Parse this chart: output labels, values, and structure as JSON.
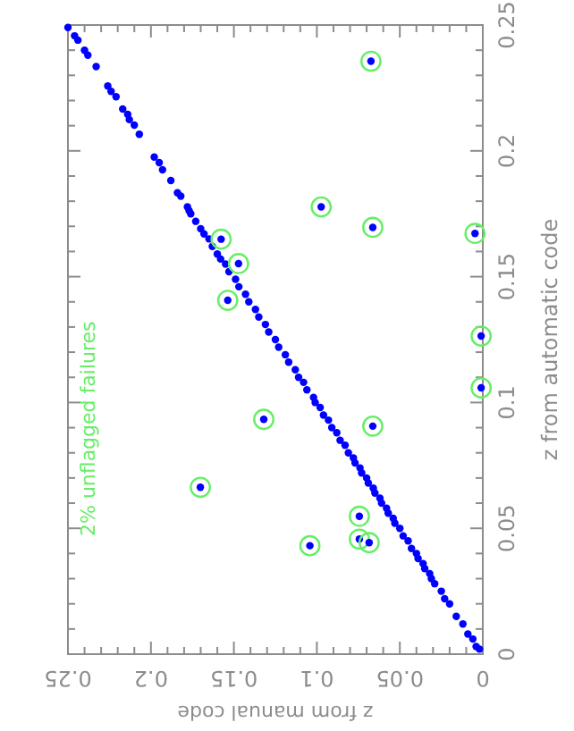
{
  "chart_data": {
    "type": "scatter",
    "xlabel": "z from manual code",
    "ylabel": "z from automatic code",
    "annotations": [
      "2% unflagged failures"
    ],
    "xlim": [
      0.25,
      0
    ],
    "ylim": [
      0,
      0.25
    ],
    "xticks": [
      0,
      {
        "value": 0.01,
        "label": null
      },
      {
        "value": 0.02,
        "label": null
      },
      {
        "value": 0.03,
        "label": null
      },
      {
        "value": 0.04,
        "label": null
      },
      0.05,
      {
        "value": 0.06,
        "label": null
      },
      {
        "value": 0.07,
        "label": null
      },
      {
        "value": 0.08,
        "label": null
      },
      {
        "value": 0.09,
        "label": null
      },
      0.1,
      {
        "value": 0.11,
        "label": null
      },
      {
        "value": 0.12,
        "label": null
      },
      {
        "value": 0.13,
        "label": null
      },
      {
        "value": 0.14,
        "label": null
      },
      0.15,
      {
        "value": 0.16,
        "label": null
      },
      {
        "value": 0.17,
        "label": null
      },
      {
        "value": 0.18,
        "label": null
      },
      {
        "value": 0.19,
        "label": null
      },
      0.2,
      {
        "value": 0.21,
        "label": null
      },
      {
        "value": 0.22,
        "label": null
      },
      {
        "value": 0.23,
        "label": null
      },
      {
        "value": 0.24,
        "label": null
      },
      0.25
    ],
    "yticks": [
      0,
      {
        "value": 0.01,
        "label": null
      },
      {
        "value": 0.02,
        "label": null
      },
      {
        "value": 0.03,
        "label": null
      },
      {
        "value": 0.04,
        "label": null
      },
      0.05,
      {
        "value": 0.06,
        "label": null
      },
      {
        "value": 0.07,
        "label": null
      },
      {
        "value": 0.08,
        "label": null
      },
      {
        "value": 0.09,
        "label": null
      },
      0.1,
      {
        "value": 0.11,
        "label": null
      },
      {
        "value": 0.12,
        "label": null
      },
      {
        "value": 0.13,
        "label": null
      },
      {
        "value": 0.14,
        "label": null
      },
      0.15,
      {
        "value": 0.16,
        "label": null
      },
      {
        "value": 0.17,
        "label": null
      },
      {
        "value": 0.18,
        "label": null
      },
      {
        "value": 0.19,
        "label": null
      },
      0.2,
      {
        "value": 0.21,
        "label": null
      },
      {
        "value": 0.22,
        "label": null
      },
      {
        "value": 0.23,
        "label": null
      },
      {
        "value": 0.24,
        "label": null
      },
      0.25
    ],
    "grid": false,
    "marker": "circle",
    "series": [
      {
        "color": "#0000ff",
        "x": [
          0.002,
          0.004,
          0.006,
          0.009,
          0.012,
          0.016,
          0.02,
          0.023,
          0.025,
          0.029,
          0.031,
          0.032,
          0.035,
          0.036,
          0.039,
          0.04,
          0.043,
          0.045,
          0.048,
          0.05,
          0.053,
          0.054,
          0.057,
          0.058,
          0.061,
          0.062,
          0.065,
          0.066,
          0.069,
          0.07,
          0.073,
          0.074,
          0.077,
          0.078,
          0.081,
          0.083,
          0.086,
          0.088,
          0.091,
          0.093,
          0.096,
          0.098,
          0.101,
          0.102,
          0.106,
          0.108,
          0.111,
          0.113,
          0.117,
          0.119,
          0.123,
          0.125,
          0.129,
          0.131,
          0.135,
          0.137,
          0.141,
          0.143,
          0.147,
          0.149,
          0.153,
          0.155,
          0.158,
          0.16,
          0.163,
          0.165,
          0.168,
          0.17,
          0.173,
          0.176,
          0.177,
          0.178,
          0.182,
          0.184,
          0.188,
          0.193,
          0.195,
          0.198,
          0.207,
          0.21,
          0.213,
          0.214,
          0.217,
          0.221,
          0.224,
          0.226,
          0.233,
          0.238,
          0.24,
          0.244,
          0.246,
          0.25
        ],
        "values": [
          0.002,
          0.003,
          0.006,
          0.008,
          0.012,
          0.015,
          0.02,
          0.022,
          0.025,
          0.028,
          0.03,
          0.032,
          0.034,
          0.036,
          0.038,
          0.04,
          0.042,
          0.045,
          0.047,
          0.05,
          0.052,
          0.054,
          0.056,
          0.058,
          0.06,
          0.062,
          0.064,
          0.066,
          0.068,
          0.07,
          0.072,
          0.074,
          0.076,
          0.078,
          0.08,
          0.083,
          0.085,
          0.088,
          0.09,
          0.093,
          0.095,
          0.098,
          0.1,
          0.102,
          0.105,
          0.108,
          0.11,
          0.113,
          0.116,
          0.119,
          0.122,
          0.125,
          0.128,
          0.131,
          0.134,
          0.137,
          0.14,
          0.143,
          0.146,
          0.149,
          0.152,
          0.155,
          0.157,
          0.159,
          0.162,
          0.165,
          0.167,
          0.169,
          0.172,
          0.175,
          0.1762,
          0.1777,
          0.182,
          0.1833,
          0.1882,
          0.1925,
          0.1953,
          0.1975,
          0.2066,
          0.2102,
          0.2124,
          0.2145,
          0.2166,
          0.2215,
          0.2236,
          0.2258,
          0.2335,
          0.238,
          0.24,
          0.244,
          0.2457,
          0.249
        ]
      },
      {
        "color": "#66ee66",
        "x": [
          0.0674,
          0.0974,
          0.0663,
          0.0047,
          0.1577,
          0.1472,
          0.1537,
          0.001,
          0.001,
          0.132,
          0.0663,
          0.1702,
          0.0744,
          0.1042,
          0.0744,
          0.0685
        ],
        "values": [
          0.2356,
          0.1777,
          0.1696,
          0.1672,
          0.1649,
          0.1552,
          0.1406,
          0.1264,
          0.1058,
          0.0933,
          0.0906,
          0.0663,
          0.0548,
          0.0431,
          0.0457,
          0.0443
        ]
      }
    ]
  }
}
